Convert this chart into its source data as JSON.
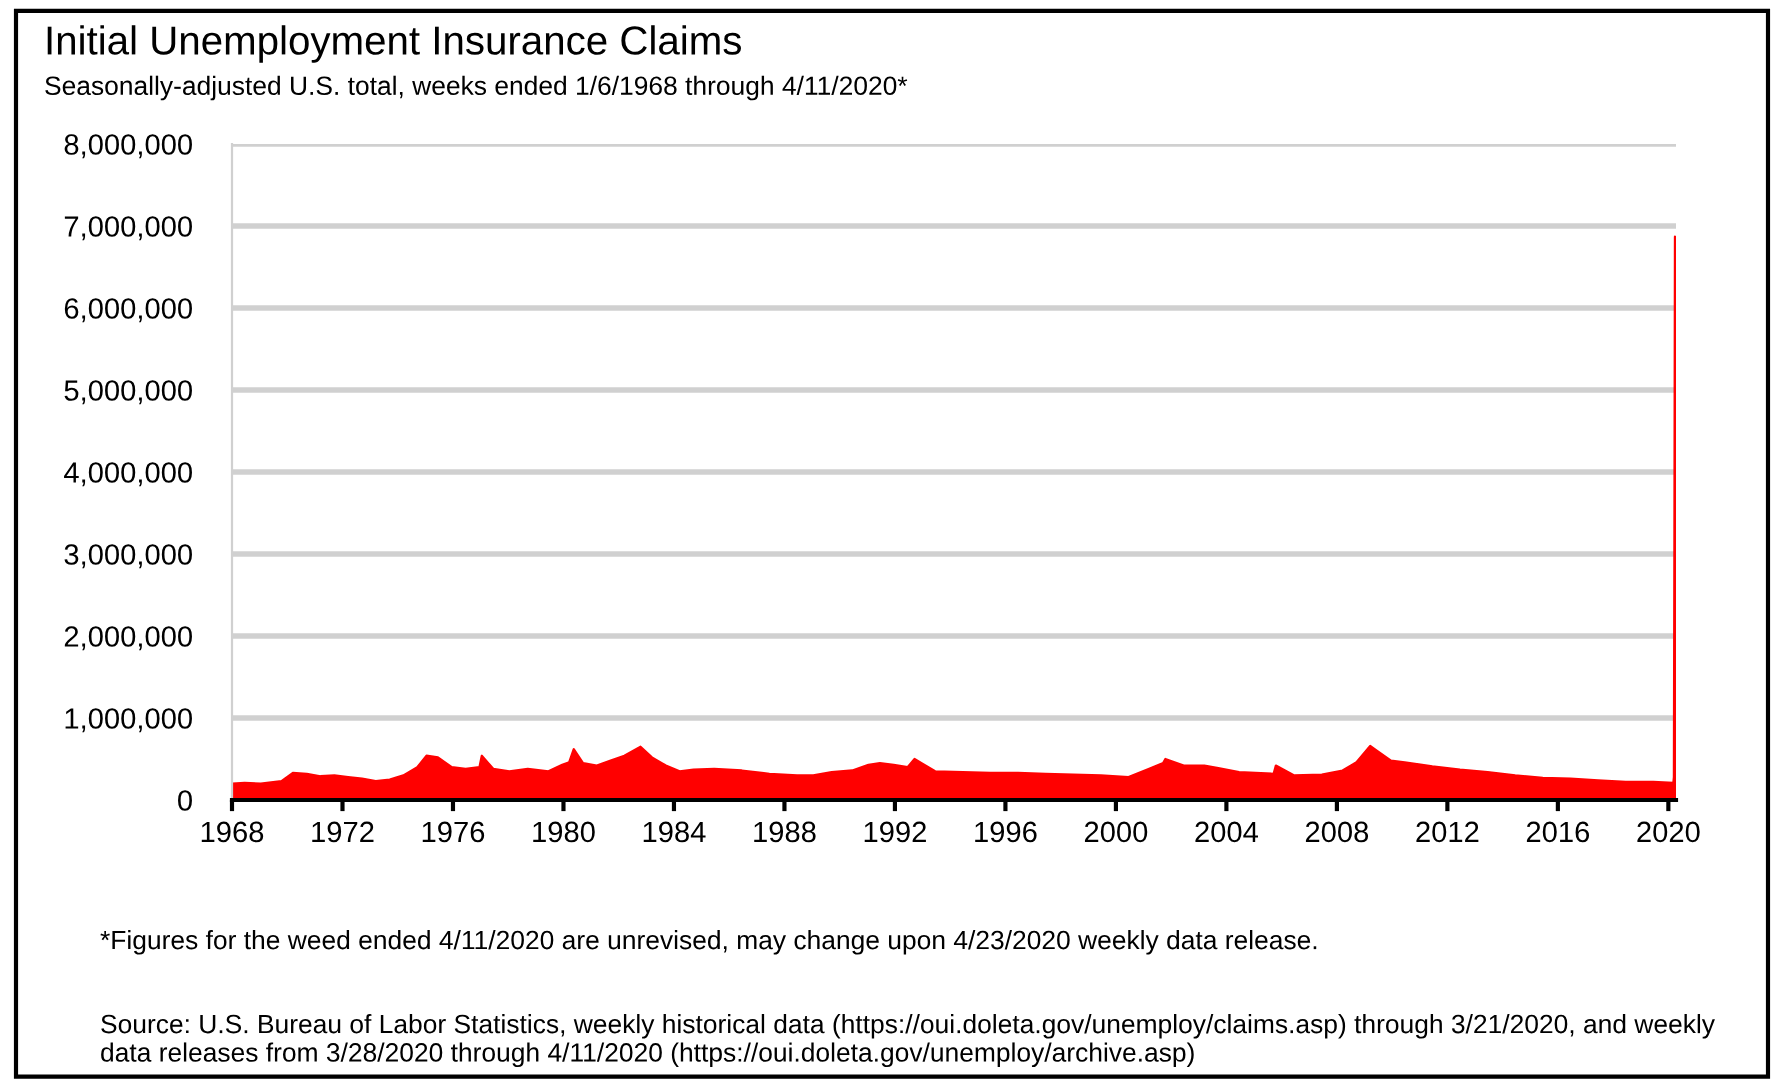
{
  "chart_data": {
    "type": "area",
    "title": "Initial Unemployment Insurance Claims",
    "subtitle": "Seasonally-adjusted U.S. total, weeks ended 1/6/1968 through 4/11/2020*",
    "x": [
      "1968-01-06",
      "1968-06",
      "1969-01",
      "1969-10",
      "1970-03",
      "1970-09",
      "1971-03",
      "1971-09",
      "1972-03",
      "1972-09",
      "1973-03",
      "1973-09",
      "1974-03",
      "1974-09",
      "1975-01",
      "1975-06",
      "1975-12",
      "1976-06",
      "1976-12",
      "1977-01",
      "1977-06",
      "1978-01",
      "1978-09",
      "1979-06",
      "1979-12",
      "1980-03",
      "1980-05",
      "1980-09",
      "1981-03",
      "1981-09",
      "1982-03",
      "1982-10",
      "1983-03",
      "1983-09",
      "1984-03",
      "1984-09",
      "1985-06",
      "1986-06",
      "1987-06",
      "1988-06",
      "1989-01",
      "1989-09",
      "1990-06",
      "1991-01",
      "1991-06",
      "1991-12",
      "1992-06",
      "1992-09",
      "1993-06",
      "1994-06",
      "1995-06",
      "1996-06",
      "1997-06",
      "1998-06",
      "1999-06",
      "2000-06",
      "2001-03",
      "2001-09",
      "2001-10",
      "2002-06",
      "2003-03",
      "2003-09",
      "2004-06",
      "2005-09",
      "2005-10",
      "2006-06",
      "2007-06",
      "2008-03",
      "2008-09",
      "2009-03",
      "2009-06",
      "2009-12",
      "2010-06",
      "2011-06",
      "2012-06",
      "2013-06",
      "2014-06",
      "2015-06",
      "2016-06",
      "2017-06",
      "2018-06",
      "2019-06",
      "2020-03-07",
      "2020-03-14",
      "2020-03-21",
      "2020-03-28",
      "2020-04-04",
      "2020-04-11"
    ],
    "series": [
      {
        "color": "#ff0000",
        "values": [
          200000,
          210000,
          200000,
          230000,
          330000,
          320000,
          290000,
          300000,
          280000,
          260000,
          230000,
          250000,
          300000,
          400000,
          540000,
          520000,
          400000,
          380000,
          400000,
          540000,
          380000,
          350000,
          380000,
          350000,
          430000,
          460000,
          620000,
          450000,
          420000,
          480000,
          540000,
          650000,
          520000,
          420000,
          350000,
          370000,
          380000,
          360000,
          320000,
          300000,
          300000,
          340000,
          360000,
          430000,
          450000,
          430000,
          400000,
          500000,
          350000,
          340000,
          330000,
          330000,
          320000,
          310000,
          300000,
          280000,
          380000,
          450000,
          500000,
          420000,
          420000,
          390000,
          340000,
          320000,
          420000,
          300000,
          310000,
          360000,
          460000,
          660000,
          600000,
          480000,
          460000,
          410000,
          370000,
          340000,
          300000,
          270000,
          260000,
          240000,
          220000,
          220000,
          210000,
          280000,
          3310000,
          6870000,
          6620000,
          5250000
        ]
      }
    ],
    "xlim": [
      "1968-01-01",
      "2020-04-11"
    ],
    "xticks": [
      "1968",
      "1972",
      "1976",
      "1980",
      "1984",
      "1988",
      "1992",
      "1996",
      "2000",
      "2004",
      "2008",
      "2012",
      "2016",
      "2020"
    ],
    "ylim": [
      0,
      8000000
    ],
    "yticks": [
      {
        "value": 0,
        "label": "0"
      },
      {
        "value": 1000000,
        "label": "1,000,000"
      },
      {
        "value": 2000000,
        "label": "2,000,000"
      },
      {
        "value": 3000000,
        "label": "3,000,000"
      },
      {
        "value": 4000000,
        "label": "4,000,000"
      },
      {
        "value": 5000000,
        "label": "5,000,000"
      },
      {
        "value": 6000000,
        "label": "6,000,000"
      },
      {
        "value": 7000000,
        "label": "7,000,000"
      },
      {
        "value": 8000000,
        "label": "8,000,000"
      }
    ],
    "grid": "y",
    "legend": false,
    "annotations": [
      "*Figures for the weed ended 4/11/2020 are unrevised, may change upon 4/23/2020 weekly data release.",
      "Source: U.S. Bureau of Labor Statistics, weekly historical data (https://oui.doleta.gov/unemploy/claims.asp) through 3/21/2020, and weekly data releases from 3/28/2020 through 4/11/2020 (https://oui.doleta.gov/unemploy/archive.asp)"
    ]
  }
}
